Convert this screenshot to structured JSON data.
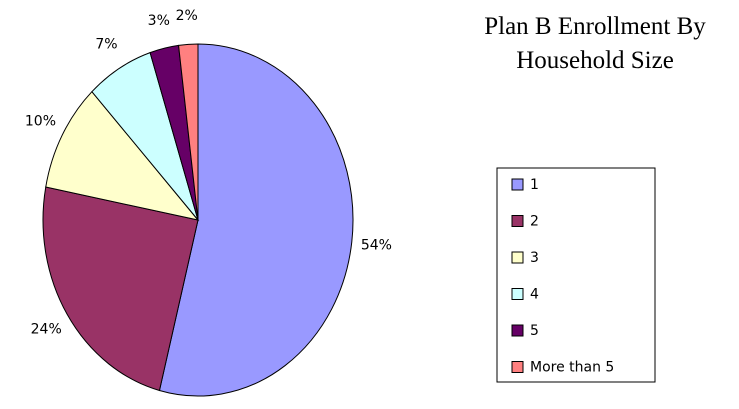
{
  "chart_data": {
    "type": "pie",
    "title": "Plan B Enrollment By Household Size",
    "categories": [
      "1",
      "2",
      "3",
      "4",
      "5",
      "More than 5"
    ],
    "values": [
      54,
      24,
      10,
      7,
      3,
      2
    ],
    "value_labels": [
      "54%",
      "24%",
      "10%",
      "7%",
      "3%",
      "2%"
    ],
    "colors": [
      "#9999ff",
      "#993366",
      "#ffffcc",
      "#ccffff",
      "#660066",
      "#ff8080"
    ],
    "legend": "right"
  }
}
